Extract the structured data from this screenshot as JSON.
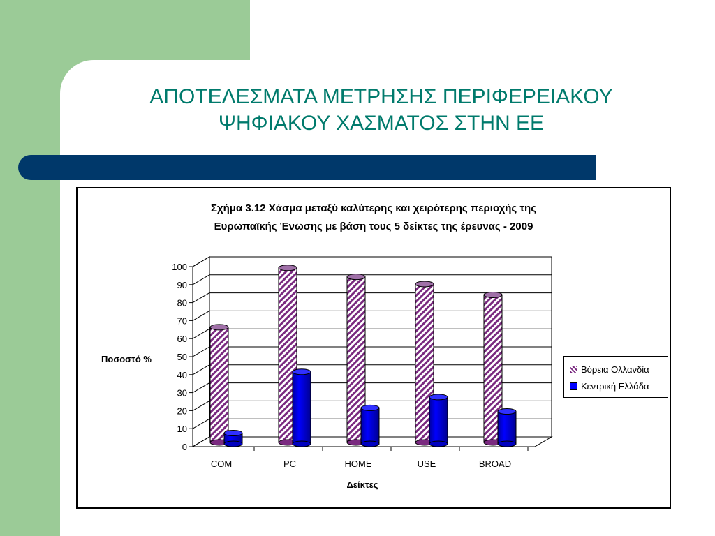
{
  "slide": {
    "title_line1": "ΑΠΟΤΕΛΕΣΜΑΤΑ ΜΕΤΡΗΣΗΣ ΠΕΡΙΦΕΡΕΙΑΚΟΥ",
    "title_line2": "ΨΗΦΙΑΚΟΥ ΧΑΣΜΑΤΟΣ ΣΤΗΝ ΕΕ",
    "colors": {
      "green_block": "#9bcb97",
      "title_text": "#007a6c",
      "title_bar": "#00386a"
    }
  },
  "chart_data": {
    "type": "bar",
    "title_line1": "Σχήμα 3.12 Χάσμα μεταξύ καλύτερης και χειρότερης περιοχής της",
    "title_line2": "Ευρωπαϊκής Ένωσης με βάση τους 5 δείκτες της έρευνας - 2009",
    "xlabel": "Δείκτες",
    "ylabel": "Ποσοστό %",
    "categories": [
      "COM",
      "PC",
      "HOME",
      "USE",
      "BROAD"
    ],
    "yticks": [
      "0",
      "10",
      "20",
      "30",
      "40",
      "50",
      "60",
      "70",
      "80",
      "90",
      "100"
    ],
    "ylim": [
      0,
      100
    ],
    "grid": true,
    "style": "3d-cylinder",
    "legend_position": "right",
    "series": [
      {
        "name": "Βόρεια Ολλανδία",
        "values": [
          64,
          97,
          92,
          88,
          82
        ],
        "color": "#7a2a80",
        "pattern": "diagonal-hatch"
      },
      {
        "name": "Κεντρική Ελλάδα",
        "values": [
          6,
          40,
          20,
          26,
          18
        ],
        "color": "#0000ff",
        "pattern": "solid"
      }
    ]
  }
}
